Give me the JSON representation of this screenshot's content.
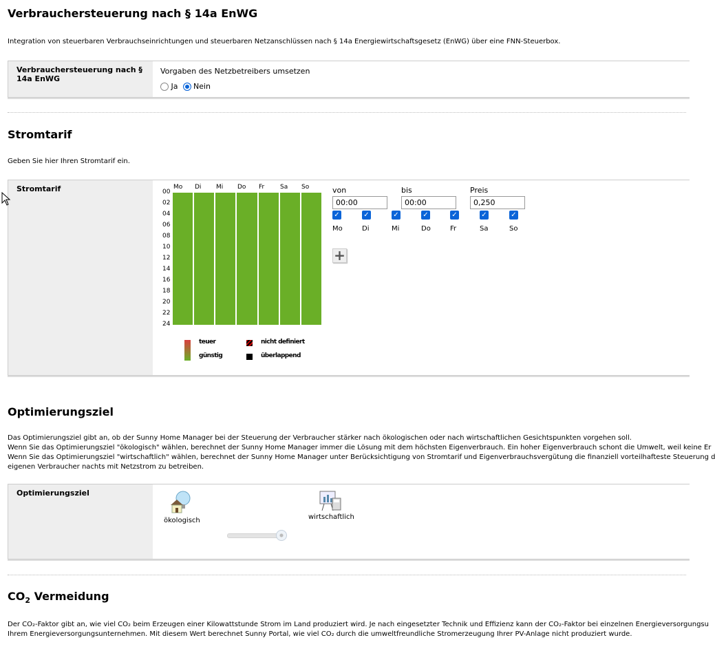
{
  "section1": {
    "title": "Verbrauchersteuerung nach § 14a EnWG",
    "description": "Integration von steuerbaren Verbrauchseinrichtungen und steuerbaren Netzanschlüssen nach § 14a Energiewirtschaftsgesetz (EnWG) über eine FNN-Steuerbox.",
    "label": "Verbrauchersteuerung nach § 14a EnWG",
    "question": "Vorgaben des Netzbetreibers umsetzen",
    "options": [
      {
        "label": "Ja",
        "selected": false
      },
      {
        "label": "Nein",
        "selected": true
      }
    ]
  },
  "section2": {
    "title": "Stromtarif",
    "description": "Geben Sie hier Ihren Stromtarif ein.",
    "label": "Stromtarif",
    "chart_data": {
      "type": "heatmap",
      "categories": [
        "Mo",
        "Di",
        "Mi",
        "Do",
        "Fr",
        "Sa",
        "So"
      ],
      "hours": [
        "00",
        "02",
        "04",
        "06",
        "08",
        "10",
        "12",
        "14",
        "16",
        "18",
        "20",
        "22",
        "24"
      ],
      "fill_color": "#6aaf27",
      "status": "günstig"
    },
    "form": {
      "von_label": "von",
      "bis_label": "bis",
      "preis_label": "Preis",
      "von": "00:00",
      "bis": "00:00",
      "preis": "0,250",
      "days": [
        {
          "label": "Mo",
          "checked": true
        },
        {
          "label": "Di",
          "checked": true
        },
        {
          "label": "Mi",
          "checked": true
        },
        {
          "label": "Do",
          "checked": true
        },
        {
          "label": "Fr",
          "checked": true
        },
        {
          "label": "Sa",
          "checked": true
        },
        {
          "label": "So",
          "checked": true
        }
      ],
      "add_icon": "plus-icon"
    },
    "legend": {
      "expensive": "teuer",
      "cheap": "günstig",
      "undefined": "nicht definiert",
      "overlapping": "überlappend"
    }
  },
  "section3": {
    "title": "Optimierungsziel",
    "lines": [
      "Das Optimierungsziel gibt an, ob der Sunny Home Manager bei der Steuerung der Verbraucher stärker nach ökologischen oder nach wirtschaftlichen Gesichtspunkten vorgehen soll.",
      "Wenn Sie das Optimierungsziel \"ökologisch\" wählen, berechnet der Sunny Home Manager immer die Lösung mit dem höchsten Eigenverbrauch. Ein hoher Eigenverbrauch schont die Umwelt, weil keine Er",
      "Wenn Sie das Optimierungsziel \"wirtschaftlich\" wählen, berechnet der Sunny Home Manager unter Berücksichtigung von Stromtarif und Eigenverbrauchsvergütung die finanziell vorteilhafteste Steuerung d",
      "eigenen Verbraucher nachts mit Netzstrom zu betreiben."
    ],
    "label": "Optimierungsziel",
    "eco_label": "ökologisch",
    "econ_label": "wirtschaftlich",
    "slider_percent": 100
  },
  "section4": {
    "title_prefix": "CO",
    "title_sub": "2",
    "title_suffix": " Vermeidung",
    "line1": "Der CO₂-Faktor gibt an, wie viel CO₂ beim Erzeugen einer Kilowattstunde Strom im Land produziert wird. Je nach eingesetzter Technik und Effizienz kann der CO₂-Faktor bei einzelnen Energieversorgungsu",
    "line2": "Ihrem Energieversorgungsunternehmen. Mit diesem Wert berechnet Sunny Portal, wie viel CO₂ durch die umweltfreundliche Stromerzeugung Ihrer PV-Anlage nicht produziert wurde."
  }
}
